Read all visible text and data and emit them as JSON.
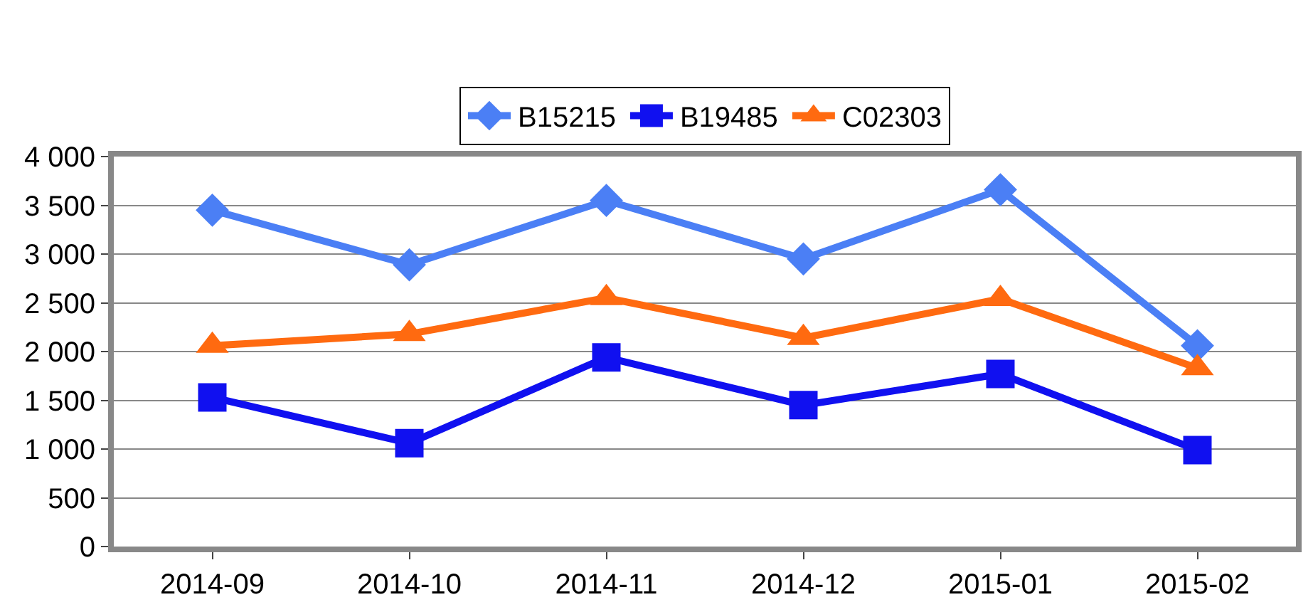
{
  "chart_data": {
    "type": "line",
    "categories": [
      "2014-09",
      "2014-10",
      "2014-11",
      "2014-12",
      "2015-01",
      "2015-02"
    ],
    "series": [
      {
        "name": "B15215",
        "color": "#4b7ff5",
        "marker": "diamond",
        "values": [
          3450,
          2890,
          3550,
          2950,
          3660,
          2060
        ]
      },
      {
        "name": "B19485",
        "color": "#1010f0",
        "marker": "square",
        "values": [
          1530,
          1060,
          1940,
          1450,
          1770,
          990
        ]
      },
      {
        "name": "C02303",
        "color": "#ff6a10",
        "marker": "triangle",
        "values": [
          2060,
          2180,
          2550,
          2140,
          2540,
          1830
        ]
      }
    ],
    "ylim": [
      0,
      4000
    ],
    "yticks": [
      {
        "value": 0,
        "label": "0"
      },
      {
        "value": 500,
        "label": "500"
      },
      {
        "value": 1000,
        "label": "1 000"
      },
      {
        "value": 1500,
        "label": "1 500"
      },
      {
        "value": 2000,
        "label": "2 000"
      },
      {
        "value": 2500,
        "label": "2 500"
      },
      {
        "value": 3000,
        "label": "3 000"
      },
      {
        "value": 3500,
        "label": "3 500"
      },
      {
        "value": 4000,
        "label": "4 000"
      }
    ],
    "grid": "y",
    "legend": "top",
    "line_style": "solid"
  }
}
